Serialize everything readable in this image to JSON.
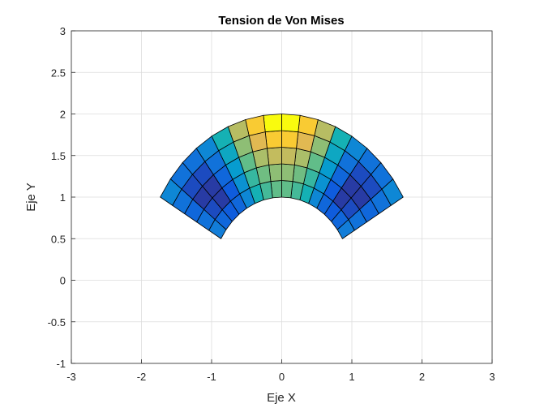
{
  "chart_data": {
    "type": "heatmap",
    "title": "Tension de Von Mises",
    "xlabel": "Eje X",
    "ylabel": "Eje Y",
    "xlim": [
      -3,
      3
    ],
    "ylim": [
      -1,
      3
    ],
    "xticks": [
      "-3",
      "-2",
      "-1",
      "0",
      "1",
      "2",
      "3"
    ],
    "yticks": [
      "-1",
      "-0.5",
      "0",
      "0.5",
      "1",
      "1.5",
      "2",
      "2.5",
      "3"
    ],
    "grid": true,
    "mesh": {
      "inner_radius": 1,
      "outer_radius": 2,
      "start_angle_deg": 30,
      "end_angle_deg": 150,
      "radial_divisions": 5,
      "angular_divisions": 16
    },
    "colormap": "parula",
    "cells": [
      [
        0.3,
        0.2,
        0.15,
        0.2,
        0.35,
        0.55,
        0.62,
        0.66,
        0.66,
        0.62,
        0.55,
        0.35,
        0.2,
        0.15,
        0.2,
        0.3
      ],
      [
        0.25,
        0.1,
        0.05,
        0.15,
        0.4,
        0.6,
        0.68,
        0.72,
        0.72,
        0.68,
        0.6,
        0.4,
        0.15,
        0.05,
        0.1,
        0.25
      ],
      [
        0.2,
        0.05,
        0.05,
        0.2,
        0.45,
        0.66,
        0.76,
        0.8,
        0.8,
        0.76,
        0.66,
        0.45,
        0.2,
        0.05,
        0.05,
        0.2
      ],
      [
        0.25,
        0.1,
        0.1,
        0.25,
        0.5,
        0.72,
        0.85,
        0.92,
        0.92,
        0.85,
        0.72,
        0.5,
        0.25,
        0.1,
        0.1,
        0.25
      ],
      [
        0.35,
        0.25,
        0.25,
        0.35,
        0.55,
        0.78,
        0.92,
        1.0,
        1.0,
        0.92,
        0.78,
        0.55,
        0.35,
        0.25,
        0.25,
        0.35
      ]
    ]
  }
}
